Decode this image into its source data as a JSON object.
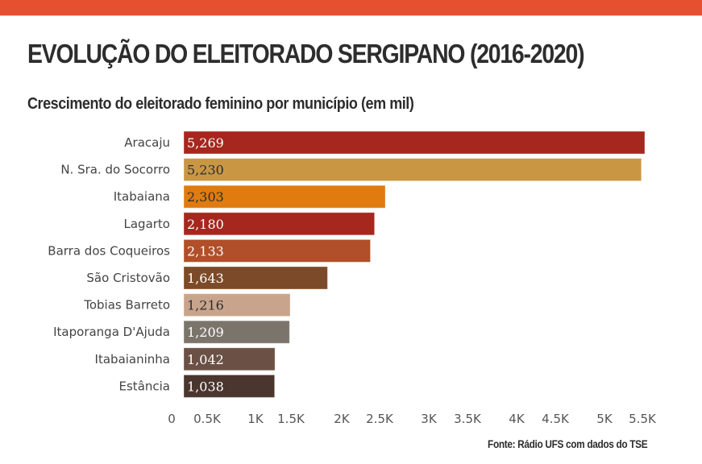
{
  "header": {
    "title": "EVOLUÇÃO DO ELEITORADO SERGIPANO (2016-2020)",
    "subtitle": "Crescimento do eleitorado feminino por município (em mil)",
    "accent_color": "#e5502e"
  },
  "source": "Fonte: Rádio UFS com dados do TSE",
  "chart_data": {
    "type": "bar",
    "orientation": "horizontal",
    "title": "Crescimento do eleitorado feminino por município (em mil)",
    "xlabel": "",
    "ylabel": "",
    "xlim": [
      0,
      5500
    ],
    "categories": [
      "Aracaju",
      "N. Sra. do Socorro",
      "Itabaiana",
      "Lagarto",
      "Barra dos Coqueiros",
      "São Cristovão",
      "Tobias Barreto",
      "Itaporanga D'Ajuda",
      "Itabaianinha",
      "Estância"
    ],
    "values": [
      5269,
      5230,
      2303,
      2180,
      2133,
      1643,
      1216,
      1209,
      1042,
      1038
    ],
    "value_labels": [
      "5,269",
      "5,230",
      "2,303",
      "2,180",
      "2,133",
      "1,643",
      "1,216",
      "1,209",
      "1,042",
      "1,038"
    ],
    "colors": [
      "#a6271e",
      "#c99744",
      "#e07b10",
      "#a6271e",
      "#b04f29",
      "#7c4a28",
      "#c9a48c",
      "#7b746a",
      "#6b5045",
      "#4a362e"
    ],
    "label_colors": [
      "#ffffff",
      "#2d2d2d",
      "#2d2d2d",
      "#ffffff",
      "#ffffff",
      "#ffffff",
      "#2d2d2d",
      "#ffffff",
      "#ffffff",
      "#ffffff"
    ],
    "x_ticks": [
      0,
      500,
      1000,
      1500,
      2000,
      2500,
      3000,
      3500,
      4000,
      4500,
      5000,
      5500
    ],
    "x_tick_labels": [
      "0",
      "0.5K",
      "1K",
      "1.5K",
      "2K",
      "2.5K",
      "3K",
      "3.5K",
      "4K",
      "4.5K",
      "5K",
      "5.5K"
    ],
    "grid": false,
    "legend": "none"
  }
}
